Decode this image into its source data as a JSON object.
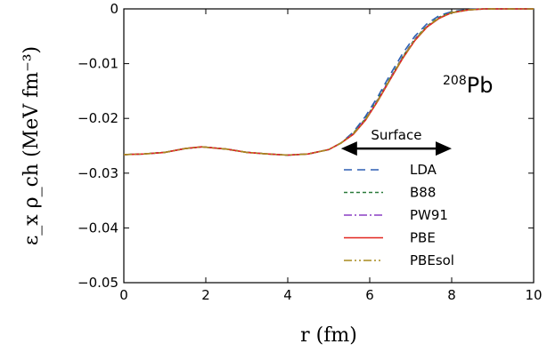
{
  "chart_data": {
    "type": "line",
    "title": "",
    "xlabel": "r (fm)",
    "ylabel": "ε_x ρ_ch (MeV fm⁻³)",
    "xlim": [
      0,
      10
    ],
    "ylim": [
      -0.05,
      0
    ],
    "xticks": [
      0,
      2,
      4,
      6,
      8,
      10
    ],
    "xtick_labels": [
      "0",
      "2",
      "4",
      "6",
      "8",
      "10"
    ],
    "yticks": [
      0,
      -0.01,
      -0.02,
      -0.03,
      -0.04,
      -0.05
    ],
    "ytick_labels": [
      "0",
      "−0.01",
      "−0.02",
      "−0.03",
      "−0.04",
      "−0.05"
    ],
    "grid": false,
    "legend_position": "lower-right",
    "annotations": {
      "nucleus_mass": "208",
      "nucleus_symbol": "Pb",
      "surface_label": "Surface",
      "surface_range": [
        5.3,
        8.0
      ],
      "surface_y": -0.0255
    },
    "series": [
      {
        "name": "LDA",
        "color": "#2d5fb3",
        "style": "dashed",
        "x": [
          0,
          0.5,
          1.0,
          1.5,
          1.9,
          2.5,
          3.0,
          3.5,
          4.0,
          4.5,
          5.0,
          5.3,
          5.6,
          5.9,
          6.2,
          6.5,
          6.8,
          7.1,
          7.4,
          7.7,
          8.0,
          8.4,
          8.8,
          9.2,
          9.6,
          10
        ],
        "y": [
          -0.0266,
          -0.0265,
          -0.0262,
          -0.0255,
          -0.0252,
          -0.0256,
          -0.0262,
          -0.0265,
          -0.0267,
          -0.0265,
          -0.0257,
          -0.0245,
          -0.0225,
          -0.0196,
          -0.016,
          -0.012,
          -0.0082,
          -0.005,
          -0.0027,
          -0.0012,
          -0.0005,
          -0.0001,
          0,
          0,
          0,
          0
        ]
      },
      {
        "name": "B88",
        "color": "#2a7a3a",
        "style": "dotted",
        "x": [
          0,
          0.5,
          1.0,
          1.5,
          1.9,
          2.5,
          3.0,
          3.5,
          4.0,
          4.5,
          5.0,
          5.3,
          5.6,
          5.9,
          6.2,
          6.5,
          6.8,
          7.1,
          7.4,
          7.7,
          8.0,
          8.4,
          8.8,
          9.2,
          9.6,
          10
        ],
        "y": [
          -0.0266,
          -0.0265,
          -0.0262,
          -0.0255,
          -0.0252,
          -0.0256,
          -0.0262,
          -0.0265,
          -0.0267,
          -0.0265,
          -0.0257,
          -0.0245,
          -0.0227,
          -0.02,
          -0.0165,
          -0.0126,
          -0.0088,
          -0.0055,
          -0.0031,
          -0.0015,
          -0.0006,
          -0.0002,
          0,
          0,
          0,
          0
        ]
      },
      {
        "name": "PW91",
        "color": "#8a3fc4",
        "style": "dashdot",
        "x": [
          0,
          0.5,
          1.0,
          1.5,
          1.9,
          2.5,
          3.0,
          3.5,
          4.0,
          4.5,
          5.0,
          5.3,
          5.6,
          5.9,
          6.2,
          6.5,
          6.8,
          7.1,
          7.4,
          7.7,
          8.0,
          8.4,
          8.8,
          9.2,
          9.6,
          10
        ],
        "y": [
          -0.0266,
          -0.0265,
          -0.0262,
          -0.0255,
          -0.0252,
          -0.0256,
          -0.0262,
          -0.0265,
          -0.0267,
          -0.0265,
          -0.0257,
          -0.0245,
          -0.0228,
          -0.0201,
          -0.0166,
          -0.0127,
          -0.0089,
          -0.0056,
          -0.0032,
          -0.0016,
          -0.0007,
          -0.0002,
          0,
          0,
          0,
          0
        ]
      },
      {
        "name": "PBE",
        "color": "#e2251e",
        "style": "solid",
        "x": [
          0,
          0.5,
          1.0,
          1.5,
          1.9,
          2.5,
          3.0,
          3.5,
          4.0,
          4.5,
          5.0,
          5.3,
          5.6,
          5.9,
          6.2,
          6.5,
          6.8,
          7.1,
          7.4,
          7.7,
          8.0,
          8.4,
          8.8,
          9.2,
          9.6,
          10
        ],
        "y": [
          -0.0266,
          -0.0265,
          -0.0262,
          -0.0255,
          -0.0252,
          -0.0256,
          -0.0262,
          -0.0265,
          -0.0267,
          -0.0265,
          -0.0257,
          -0.0245,
          -0.0229,
          -0.0203,
          -0.0168,
          -0.0129,
          -0.0091,
          -0.0058,
          -0.0033,
          -0.0017,
          -0.0007,
          -0.0002,
          0,
          0,
          0,
          0
        ]
      },
      {
        "name": "PBEsol",
        "color": "#a88a1e",
        "style": "dashdotdot",
        "x": [
          0,
          0.5,
          1.0,
          1.5,
          1.9,
          2.5,
          3.0,
          3.5,
          4.0,
          4.5,
          5.0,
          5.3,
          5.6,
          5.9,
          6.2,
          6.5,
          6.8,
          7.1,
          7.4,
          7.7,
          8.0,
          8.4,
          8.8,
          9.2,
          9.6,
          10
        ],
        "y": [
          -0.0266,
          -0.0265,
          -0.0262,
          -0.0255,
          -0.0252,
          -0.0256,
          -0.0262,
          -0.0265,
          -0.0267,
          -0.0265,
          -0.0257,
          -0.0245,
          -0.0228,
          -0.0202,
          -0.0167,
          -0.0128,
          -0.009,
          -0.0057,
          -0.0032,
          -0.0016,
          -0.0007,
          -0.0002,
          0,
          0,
          0,
          0
        ]
      }
    ]
  }
}
